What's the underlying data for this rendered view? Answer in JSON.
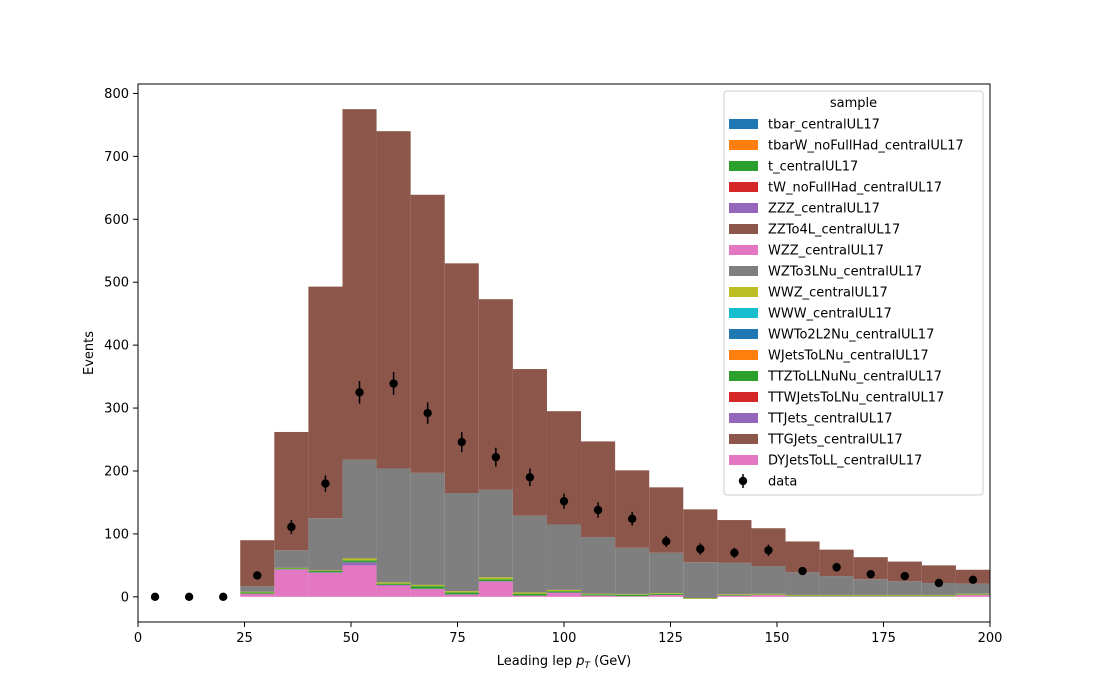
{
  "chart_data": {
    "type": "bar",
    "stacked": true,
    "style": "step-histogram",
    "xlabel": "Leading lep p_T (GeV)",
    "xlabel_main": "Leading lep ",
    "xlabel_p": "p",
    "xlabel_sub": "T",
    "xlabel_unit": " (GeV)",
    "ylabel": "Events",
    "xlim": [
      0,
      200
    ],
    "ylim": [
      -40,
      815
    ],
    "xticks": [
      0,
      25,
      50,
      75,
      100,
      125,
      150,
      175,
      200
    ],
    "yticks": [
      0,
      100,
      200,
      300,
      400,
      500,
      600,
      700,
      800
    ],
    "bin_edges": [
      0,
      8,
      16,
      24,
      32,
      40,
      48,
      56,
      64,
      72,
      80,
      88,
      96,
      104,
      112,
      120,
      128,
      136,
      144,
      152,
      160,
      168,
      176,
      184,
      192,
      200
    ],
    "legend": {
      "title": "sample",
      "placement": "top-right",
      "entries": [
        {
          "label": "tbar_centralUL17",
          "color": "#1f77b4",
          "kind": "patch"
        },
        {
          "label": "tbarW_noFullHad_centralUL17",
          "color": "#ff7f0e",
          "kind": "patch"
        },
        {
          "label": "t_centralUL17",
          "color": "#2ca02c",
          "kind": "patch"
        },
        {
          "label": "tW_noFullHad_centralUL17",
          "color": "#d62728",
          "kind": "patch"
        },
        {
          "label": "ZZZ_centralUL17",
          "color": "#9467bd",
          "kind": "patch"
        },
        {
          "label": "ZZTo4L_centralUL17",
          "color": "#8c564b",
          "kind": "patch"
        },
        {
          "label": "WZZ_centralUL17",
          "color": "#e377c2",
          "kind": "patch"
        },
        {
          "label": "WZTo3LNu_centralUL17",
          "color": "#7f7f7f",
          "kind": "patch"
        },
        {
          "label": "WWZ_centralUL17",
          "color": "#bcbd22",
          "kind": "patch"
        },
        {
          "label": "WWW_centralUL17",
          "color": "#17becf",
          "kind": "patch"
        },
        {
          "label": "WWTo2L2Nu_centralUL17",
          "color": "#1f77b4",
          "kind": "patch"
        },
        {
          "label": "WJetsToLNu_centralUL17",
          "color": "#ff7f0e",
          "kind": "patch"
        },
        {
          "label": "TTZToLLNuNu_centralUL17",
          "color": "#2ca02c",
          "kind": "patch"
        },
        {
          "label": "TTWJetsToLNu_centralUL17",
          "color": "#d62728",
          "kind": "patch"
        },
        {
          "label": "TTJets_centralUL17",
          "color": "#9467bd",
          "kind": "patch"
        },
        {
          "label": "TTGJets_centralUL17",
          "color": "#8c564b",
          "kind": "patch"
        },
        {
          "label": "DYJetsToLL_centralUL17",
          "color": "#e377c2",
          "kind": "patch"
        },
        {
          "label": "data",
          "color": "#000000",
          "kind": "errorbar"
        }
      ]
    },
    "series": [
      {
        "name": "DYJetsToLL_centralUL17",
        "color": "#e377c2",
        "values": [
          0,
          0,
          0,
          5,
          43,
          38,
          50,
          18,
          12,
          3,
          24,
          2,
          6,
          2,
          1,
          3,
          0,
          2,
          3,
          1,
          1,
          1,
          1,
          1,
          3
        ]
      },
      {
        "name": "TTJets_centralUL17",
        "color": "#9467bd",
        "values": [
          0,
          0,
          0,
          0,
          1,
          1,
          5,
          1,
          1,
          1,
          1,
          0,
          1,
          0,
          0,
          0,
          0,
          0,
          0,
          0,
          0,
          0,
          0,
          0,
          0
        ]
      },
      {
        "name": "TTZToLLNuNu_centralUL17",
        "color": "#2ca02c",
        "values": [
          0,
          0,
          0,
          2,
          1,
          2,
          3,
          2,
          4,
          3,
          3,
          3,
          2,
          2,
          2,
          2,
          -3,
          1,
          1,
          1,
          1,
          1,
          1,
          1,
          1
        ]
      },
      {
        "name": "WWZ_centralUL17",
        "color": "#bcbd22",
        "values": [
          0,
          0,
          0,
          1,
          1,
          1,
          3,
          2,
          2,
          2,
          3,
          2,
          2,
          1,
          1,
          1,
          1,
          1,
          1,
          1,
          1,
          1,
          1,
          1,
          1
        ]
      },
      {
        "name": "WZTo3LNu_centralUL17",
        "color": "#7f7f7f",
        "values": [
          0,
          0,
          0,
          9,
          28,
          83,
          157,
          181,
          178,
          156,
          139,
          122,
          104,
          90,
          74,
          64,
          57,
          50,
          44,
          36,
          30,
          25,
          22,
          19,
          16
        ]
      },
      {
        "name": "ZZTo4L_centralUL17",
        "color": "#8c564b",
        "values": [
          0,
          0,
          0,
          73,
          188,
          368,
          557,
          536,
          442,
          365,
          303,
          233,
          180,
          152,
          123,
          104,
          84,
          68,
          60,
          49,
          42,
          35,
          31,
          28,
          22
        ]
      }
    ],
    "data": {
      "name": "data",
      "x": [
        4,
        12,
        20,
        28,
        36,
        44,
        52,
        60,
        68,
        76,
        84,
        92,
        100,
        108,
        116,
        124,
        132,
        140,
        148,
        156,
        164,
        172,
        180,
        188,
        196
      ],
      "y": [
        0,
        0,
        0,
        34,
        111,
        180,
        325,
        339,
        292,
        246,
        222,
        190,
        152,
        138,
        124,
        88,
        76,
        70,
        74,
        41,
        47,
        36,
        33,
        22,
        27
      ],
      "yerr": [
        0,
        0,
        0,
        6,
        11,
        13,
        18,
        18,
        17,
        16,
        15,
        14,
        12,
        12,
        11,
        9,
        9,
        8,
        9,
        6,
        7,
        6,
        6,
        5,
        5
      ]
    }
  }
}
